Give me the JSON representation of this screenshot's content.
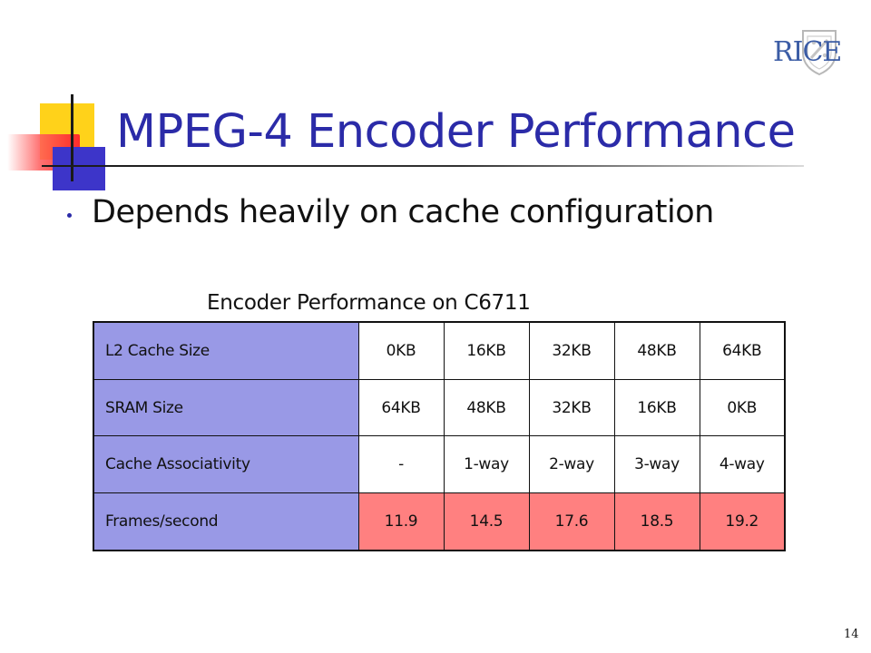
{
  "slide": {
    "title": "MPEG-4 Encoder Performance",
    "bullets": [
      "Depends heavily on cache configuration"
    ],
    "table_caption": "Encoder Performance on C6711",
    "logo_text": "RICE",
    "page_number": "14"
  },
  "colors": {
    "title": "#2b2ba8",
    "label_cells": "#9999e6",
    "highlight_cells": "#ff8080",
    "deco_yellow": "#ffd21a",
    "deco_red": "#ff2b2b",
    "deco_blue": "#3d35c9"
  },
  "table": {
    "rows": [
      {
        "label": "L2 Cache Size",
        "values": [
          "0KB",
          "16KB",
          "32KB",
          "48KB",
          "64KB"
        ]
      },
      {
        "label": "SRAM Size",
        "values": [
          "64KB",
          "48KB",
          "32KB",
          "16KB",
          "0KB"
        ]
      },
      {
        "label": "Cache Associativity",
        "values": [
          "-",
          "1-way",
          "2-way",
          "3-way",
          "4-way"
        ]
      },
      {
        "label": "Frames/second",
        "values": [
          "11.9",
          "14.5",
          "17.6",
          "18.5",
          "19.2"
        ]
      }
    ]
  }
}
